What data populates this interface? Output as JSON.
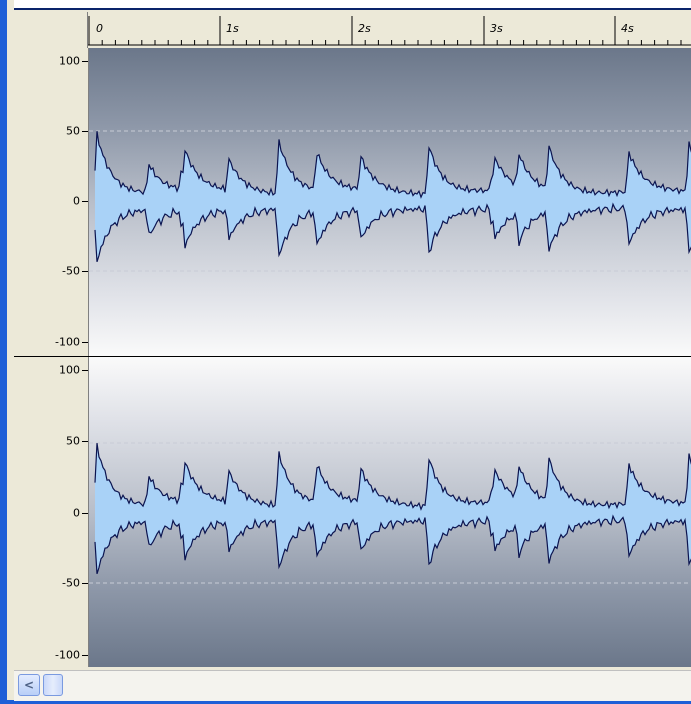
{
  "ruler": {
    "labels": [
      "0",
      "1s",
      "2s",
      "3s",
      "4s"
    ]
  },
  "channels": [
    {
      "y_labels": [
        "100",
        "50",
        "0",
        "-50",
        "-100"
      ]
    },
    {
      "y_labels": [
        "100",
        "50",
        "0",
        "-50",
        "-100"
      ]
    }
  ],
  "colors": {
    "waveform_fill": "#A9D2F7",
    "waveform_stroke": "#0B1450",
    "gridline": "#C8CCD6",
    "window_border": "#1E5FD7"
  },
  "icons": {
    "scroll_left": "chevron-left-icon"
  },
  "scrollbar": {
    "left_arrow": "<"
  }
}
